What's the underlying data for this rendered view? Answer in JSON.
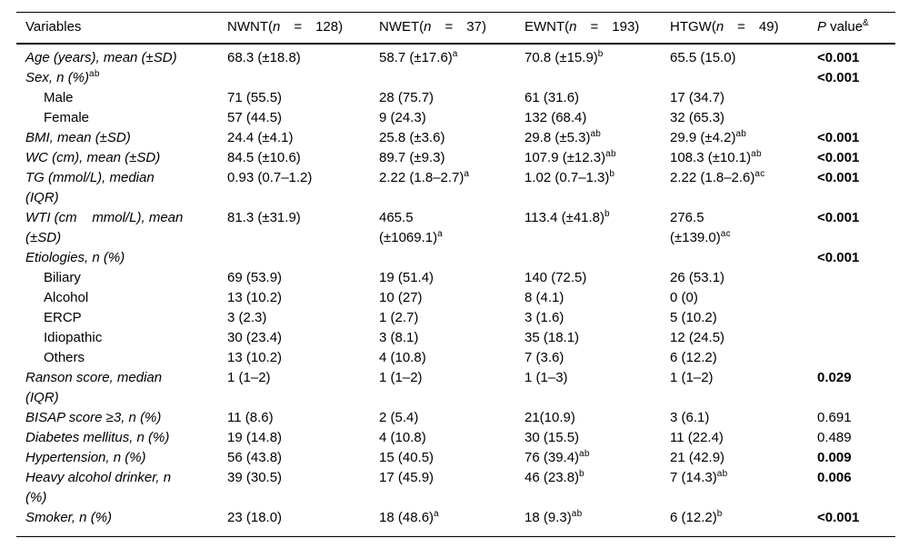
{
  "meta": {
    "background_color": "#ffffff",
    "text_color": "#000000",
    "rule_color": "#000000"
  },
  "table": {
    "column_keys": [
      "nwnt",
      "nwet",
      "ewnt",
      "htgw"
    ],
    "columns": [
      {
        "key": "variables",
        "parts": [
          {
            "t": "Variables"
          }
        ]
      },
      {
        "key": "nwnt",
        "parts": [
          {
            "t": "NWNT("
          },
          {
            "t": "n",
            "i": true
          },
          {
            "t": " = 128)"
          }
        ]
      },
      {
        "key": "nwet",
        "parts": [
          {
            "t": "NWET("
          },
          {
            "t": "n",
            "i": true
          },
          {
            "t": " = 37)"
          }
        ]
      },
      {
        "key": "ewnt",
        "parts": [
          {
            "t": "EWNT("
          },
          {
            "t": "n",
            "i": true
          },
          {
            "t": " = 193)"
          }
        ]
      },
      {
        "key": "htgw",
        "parts": [
          {
            "t": "HTGW("
          },
          {
            "t": "n",
            "i": true
          },
          {
            "t": " = 49)"
          }
        ]
      },
      {
        "key": "pvalue",
        "parts": [
          {
            "t": "P",
            "i": true
          },
          {
            "t": " value"
          },
          {
            "t": "&",
            "sup": true
          }
        ]
      }
    ],
    "rows": [
      {
        "label": {
          "text": "Age (years), mean (±SD)",
          "italic": true,
          "indent": false
        },
        "cells": [
          "68.3 (±18.8)",
          "58.7 (±17.6)^a",
          "70.8 (±15.9)^b",
          "65.5 (15.0)"
        ],
        "p": "<0.001",
        "p_bold": true
      },
      {
        "label": {
          "text": "Sex, n (%)^ab",
          "italic": true,
          "indent": false
        },
        "cells": [
          "",
          "",
          "",
          ""
        ],
        "p": "<0.001",
        "p_bold": true
      },
      {
        "label": {
          "text": "Male",
          "italic": false,
          "indent": true
        },
        "cells": [
          "71 (55.5)",
          "28 (75.7)",
          "61 (31.6)",
          "17 (34.7)"
        ],
        "p": "",
        "p_bold": false
      },
      {
        "label": {
          "text": "Female",
          "italic": false,
          "indent": true
        },
        "cells": [
          "57 (44.5)",
          "9 (24.3)",
          "132 (68.4)",
          "32 (65.3)"
        ],
        "p": "",
        "p_bold": false
      },
      {
        "label": {
          "text": "BMI, mean (±SD)",
          "italic": true,
          "indent": false
        },
        "cells": [
          "24.4 (±4.1)",
          "25.8 (±3.6)",
          "29.8 (±5.3)^ab",
          "29.9 (±4.2)^ab"
        ],
        "p": "<0.001",
        "p_bold": true
      },
      {
        "label": {
          "text": "WC (cm), mean (±SD)",
          "italic": true,
          "indent": false
        },
        "cells": [
          "84.5 (±10.6)",
          "89.7 (±9.3)",
          "107.9 (±12.3)^ab",
          "108.3 (±10.1)^ab"
        ],
        "p": "<0.001",
        "p_bold": true
      },
      {
        "label": {
          "text": "TG (mmol/L), median\n(IQR)",
          "italic": true,
          "indent": false
        },
        "cells": [
          "0.93 (0.7–1.2)",
          "2.22 (1.8–2.7)^a",
          "1.02 (0.7–1.3)^b",
          "2.22 (1.8–2.6)^ac"
        ],
        "p": "<0.001",
        "p_bold": true
      },
      {
        "label": {
          "text": "WTI (cm    mmol/L), mean\n(±SD)",
          "italic": true,
          "indent": false
        },
        "cells": [
          "81.3 (±31.9)",
          "465.5\n(±1069.1)^a",
          "113.4 (±41.8)^b",
          "276.5\n(±139.0)^ac"
        ],
        "p": "<0.001",
        "p_bold": true
      },
      {
        "label": {
          "text": "Etiologies, n (%)",
          "italic": true,
          "indent": false
        },
        "cells": [
          "",
          "",
          "",
          ""
        ],
        "p": "<0.001",
        "p_bold": true
      },
      {
        "label": {
          "text": "Biliary",
          "italic": false,
          "indent": true
        },
        "cells": [
          "69 (53.9)",
          "19 (51.4)",
          "140 (72.5)",
          "26 (53.1)"
        ],
        "p": "",
        "p_bold": false
      },
      {
        "label": {
          "text": "Alcohol",
          "italic": false,
          "indent": true
        },
        "cells": [
          "13 (10.2)",
          "10 (27)",
          "8 (4.1)",
          "0 (0)"
        ],
        "p": "",
        "p_bold": false
      },
      {
        "label": {
          "text": "ERCP",
          "italic": false,
          "indent": true
        },
        "cells": [
          "3 (2.3)",
          "1 (2.7)",
          "3 (1.6)",
          "5 (10.2)"
        ],
        "p": "",
        "p_bold": false
      },
      {
        "label": {
          "text": "Idiopathic",
          "italic": false,
          "indent": true
        },
        "cells": [
          "30 (23.4)",
          "3 (8.1)",
          "35 (18.1)",
          "12 (24.5)"
        ],
        "p": "",
        "p_bold": false
      },
      {
        "label": {
          "text": "Others",
          "italic": false,
          "indent": true
        },
        "cells": [
          "13 (10.2)",
          "4 (10.8)",
          "7 (3.6)",
          "6 (12.2)"
        ],
        "p": "",
        "p_bold": false
      },
      {
        "label": {
          "text": "Ranson score, median\n(IQR)",
          "italic": true,
          "indent": false
        },
        "cells": [
          "1 (1–2)",
          "1 (1–2)",
          "1 (1–3)",
          "1 (1–2)"
        ],
        "p": "0.029",
        "p_bold": true
      },
      {
        "label": {
          "text": "BISAP score ≥3, n (%)",
          "italic": true,
          "indent": false
        },
        "cells": [
          "11 (8.6)",
          "2 (5.4)",
          "21(10.9)",
          "3 (6.1)"
        ],
        "p": "0.691",
        "p_bold": false
      },
      {
        "label": {
          "text": "Diabetes mellitus, n (%)",
          "italic": true,
          "indent": false
        },
        "cells": [
          "19 (14.8)",
          "4 (10.8)",
          "30 (15.5)",
          "11 (22.4)"
        ],
        "p": "0.489",
        "p_bold": false
      },
      {
        "label": {
          "text": "Hypertension, n (%)",
          "italic": true,
          "indent": false
        },
        "cells": [
          "56 (43.8)",
          "15 (40.5)",
          "76 (39.4)^ab",
          "21 (42.9)"
        ],
        "p": "0.009",
        "p_bold": true
      },
      {
        "label": {
          "text": "Heavy alcohol drinker, n\n(%)",
          "italic": true,
          "indent": false
        },
        "cells": [
          "39 (30.5)",
          "17 (45.9)",
          "46 (23.8)^b",
          "7 (14.3)^ab"
        ],
        "p": "0.006",
        "p_bold": true
      },
      {
        "label": {
          "text": "Smoker, n (%)",
          "italic": true,
          "indent": false
        },
        "cells": [
          "23 (18.0)",
          "18 (48.6)^a",
          "18 (9.3)^ab",
          "6 (12.2)^b"
        ],
        "p": "<0.001",
        "p_bold": true
      }
    ]
  }
}
